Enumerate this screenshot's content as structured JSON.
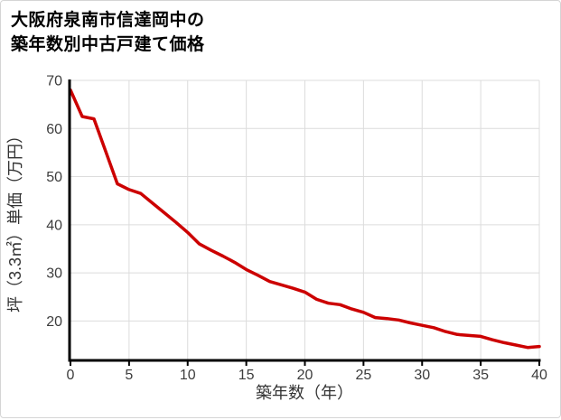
{
  "title": {
    "line1": "大阪府泉南市信達岡中の",
    "line2": "築年数別中古戸建て価格"
  },
  "chart_data": {
    "type": "line",
    "title": "大阪府泉南市信達岡中の築年数別中古戸建て価格",
    "xlabel": "築年数（年）",
    "ylabel": "坪（3.3㎡）単価（万円）",
    "x": [
      0,
      1,
      2,
      3,
      4,
      5,
      6,
      7,
      8,
      9,
      10,
      11,
      12,
      13,
      14,
      15,
      16,
      17,
      18,
      19,
      20,
      21,
      22,
      23,
      24,
      25,
      26,
      27,
      28,
      29,
      30,
      31,
      32,
      33,
      34,
      35,
      36,
      37,
      38,
      39,
      40
    ],
    "values": [
      68,
      62.5,
      62,
      55.3,
      48.5,
      47.3,
      46.5,
      44.5,
      42.5,
      40.5,
      38.4,
      36,
      34.7,
      33.5,
      32.2,
      30.7,
      29.5,
      28.2,
      27.5,
      26.8,
      26,
      24.5,
      23.7,
      23.4,
      22.5,
      21.8,
      20.7,
      20.5,
      20.2,
      19.6,
      19.1,
      18.6,
      17.8,
      17.2,
      17,
      16.8,
      16.1,
      15.5,
      15,
      14.5,
      14.7
    ],
    "x_ticks": [
      0,
      5,
      10,
      15,
      20,
      25,
      30,
      35,
      40
    ],
    "y_ticks": [
      20,
      30,
      40,
      50,
      60,
      70
    ],
    "xlim": [
      0,
      40
    ],
    "ylim": [
      12,
      70
    ],
    "grid": true,
    "legend": "none",
    "colors": {
      "line": "#cc0000",
      "grid": "#dcdcdc",
      "axis": "#000000",
      "tick_label": "#3d3d3d",
      "axis_title": "#333333",
      "title": "#000000",
      "background": "#ffffff",
      "border": "#d5d5d5"
    }
  }
}
